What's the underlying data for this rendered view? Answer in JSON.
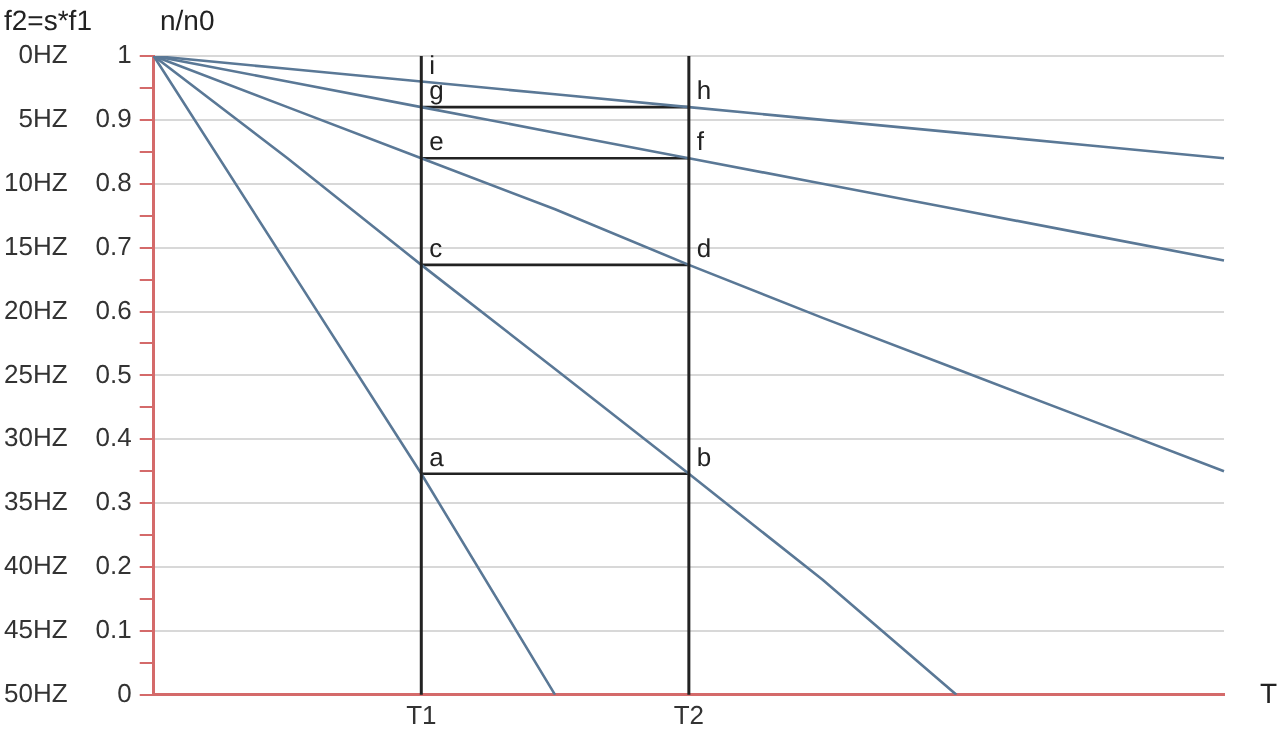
{
  "chart_data": {
    "type": "line",
    "xlabel": "T",
    "ylabel": "n/n0",
    "y2label": "f2=s*f1",
    "categories": [
      null,
      null,
      "T1",
      null,
      "T2",
      null,
      null,
      null,
      null
    ],
    "ylim": [
      0,
      1
    ],
    "yticks": [
      0,
      {
        "value": 0.05,
        "label": null
      },
      0.1,
      {
        "value": 0.15,
        "label": null
      },
      0.2,
      {
        "value": 0.25,
        "label": null
      },
      0.3,
      {
        "value": 0.35,
        "label": null
      },
      0.4,
      {
        "value": 0.45,
        "label": null
      },
      0.5,
      {
        "value": 0.55,
        "label": null
      },
      0.6,
      {
        "value": 0.65,
        "label": null
      },
      0.7,
      {
        "value": 0.75,
        "label": null
      },
      0.8,
      {
        "value": 0.85,
        "label": null
      },
      0.9,
      {
        "value": 0.95,
        "label": null
      },
      1
    ],
    "y2lim": [
      50,
      0
    ],
    "y2ticks": [
      {
        "value": 0,
        "label": "0HZ"
      },
      {
        "value": 5,
        "label": "5HZ"
      },
      {
        "value": 10,
        "label": "10HZ"
      },
      {
        "value": 15,
        "label": "15HZ"
      },
      {
        "value": 20,
        "label": "20HZ"
      },
      {
        "value": 25,
        "label": "25HZ"
      },
      {
        "value": 30,
        "label": "30HZ"
      },
      {
        "value": 35,
        "label": "35HZ"
      },
      {
        "value": 40,
        "label": "40HZ"
      },
      {
        "value": 45,
        "label": "45HZ"
      },
      {
        "value": 50,
        "label": "50HZ"
      }
    ],
    "grid": "y",
    "legend": false,
    "marker": "none",
    "line_style": "solid",
    "series": [
      {
        "color": "#5a7896",
        "values": [
          1,
          0.673,
          0.346,
          0,
          null,
          null,
          null,
          null,
          null
        ]
      },
      {
        "color": "#5a7896",
        "values": [
          1,
          0.84,
          0.673,
          0.51,
          0.346,
          0.18,
          0,
          null,
          null
        ]
      },
      {
        "color": "#5a7896",
        "values": [
          1,
          0.92,
          0.84,
          0.76,
          0.673,
          0.59,
          0.51,
          0.43,
          0.35
        ]
      },
      {
        "color": "#5a7896",
        "values": [
          1,
          0.96,
          0.92,
          0.88,
          0.84,
          0.8,
          0.76,
          0.72,
          0.68
        ]
      },
      {
        "color": "#5a7896",
        "values": [
          1,
          0.98,
          0.96,
          0.94,
          0.92,
          0.9,
          0.88,
          0.86,
          0.84
        ]
      },
      {
        "color": "#222222",
        "values": [
          null,
          null,
          0.346,
          0.346,
          0.346,
          null,
          null,
          null,
          null
        ]
      },
      {
        "color": "#222222",
        "values": [
          null,
          null,
          0.673,
          0.673,
          0.673,
          null,
          null,
          null,
          null
        ]
      },
      {
        "color": "#222222",
        "values": [
          null,
          null,
          0.84,
          0.84,
          0.84,
          null,
          null,
          null,
          null
        ]
      },
      {
        "color": "#222222",
        "values": [
          null,
          null,
          0.92,
          0.92,
          0.92,
          null,
          null,
          null,
          null
        ]
      }
    ],
    "ref_lines": [
      {
        "axis": "x",
        "value": "T1",
        "color": "#222222"
      },
      {
        "axis": "x",
        "value": "T2",
        "color": "#222222"
      }
    ],
    "annotations": [
      {
        "text": "a",
        "x": "T1",
        "y": 0.346
      },
      {
        "text": "b",
        "x": "T2",
        "y": 0.346
      },
      {
        "text": "c",
        "x": "T1",
        "y": 0.673
      },
      {
        "text": "d",
        "x": "T2",
        "y": 0.673
      },
      {
        "text": "e",
        "x": "T1",
        "y": 0.84
      },
      {
        "text": "f",
        "x": "T2",
        "y": 0.84
      },
      {
        "text": "g",
        "x": "T1",
        "y": 0.92
      },
      {
        "text": "h",
        "x": "T2",
        "y": 0.92
      },
      {
        "text": "i",
        "x": "T1",
        "y": 0.96
      }
    ]
  }
}
